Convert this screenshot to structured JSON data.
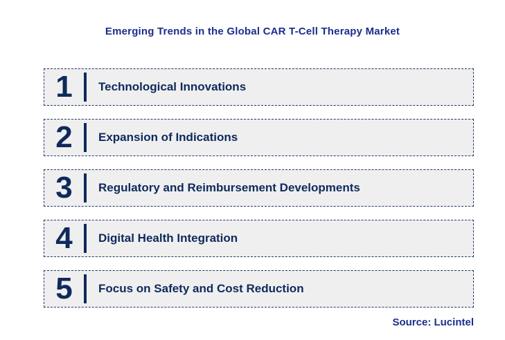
{
  "title": "Emerging Trends in the Global CAR T-Cell Therapy Market",
  "source": "Source: Lucintel",
  "colors": {
    "title_blue": "#1b2d8c",
    "item_navy": "#0e2a5c",
    "box_fill": "#efefef",
    "box_border": "#1f3864"
  },
  "trends": [
    {
      "number": "1",
      "label": "Technological Innovations"
    },
    {
      "number": "2",
      "label": "Expansion of Indications"
    },
    {
      "number": "3",
      "label": "Regulatory and Reimbursement Developments"
    },
    {
      "number": "4",
      "label": "Digital Health Integration"
    },
    {
      "number": "5",
      "label": "Focus on Safety and Cost Reduction"
    }
  ]
}
